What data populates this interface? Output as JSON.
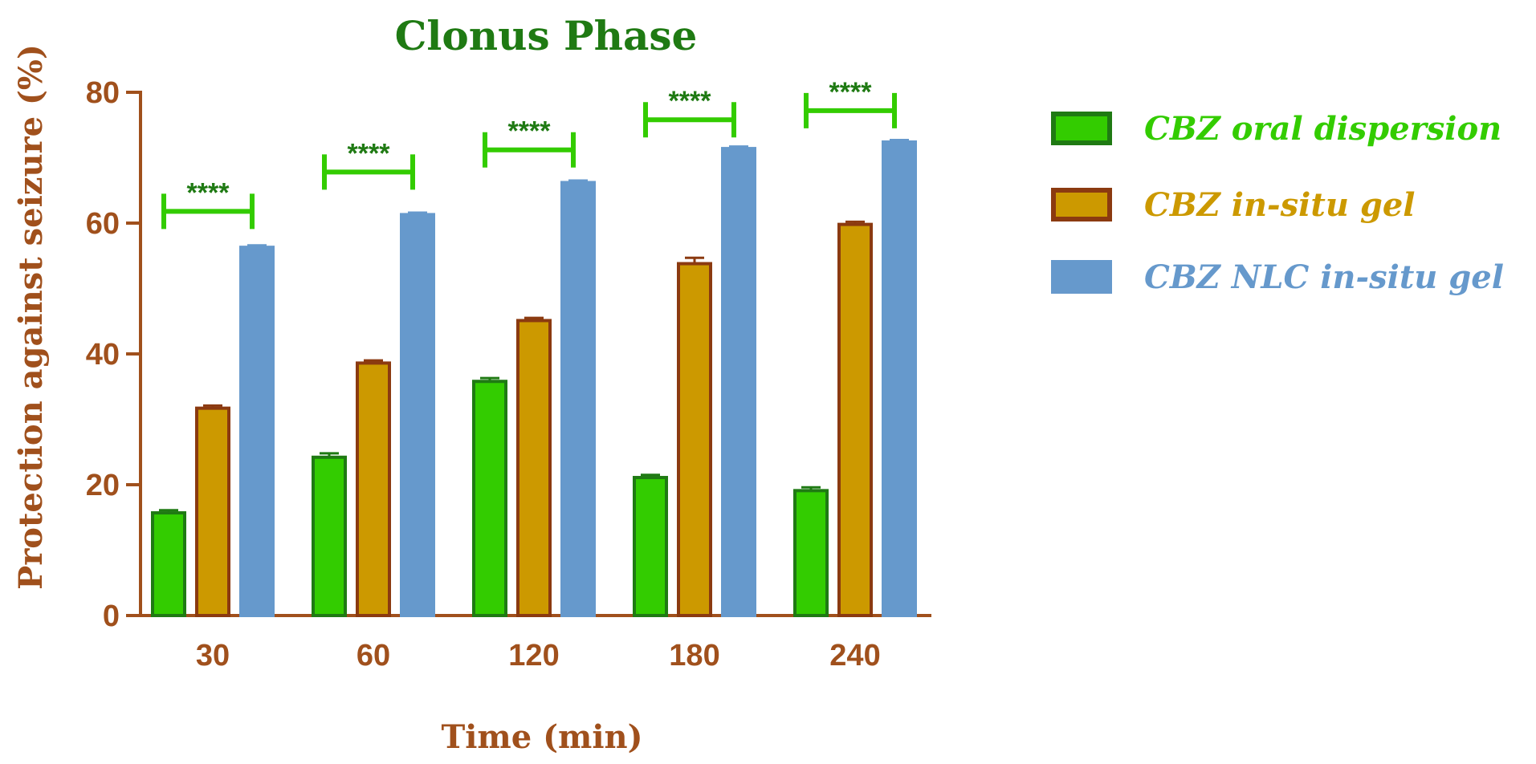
{
  "chart_data": {
    "type": "bar",
    "title": "Clonus Phase",
    "xlabel": "Time (min)",
    "ylabel": "Protection against seizure (%)",
    "categories": [
      "30",
      "60",
      "120",
      "180",
      "240"
    ],
    "ylim": [
      0,
      80
    ],
    "yticks": [
      0,
      20,
      40,
      60,
      80
    ],
    "grid": false,
    "legend_position": "right",
    "series": [
      {
        "name": "CBZ oral dispersion",
        "values": [
          15.7,
          24.2,
          35.8,
          21.1,
          19.1
        ],
        "errors": [
          0.4,
          0.6,
          0.5,
          0.4,
          0.5
        ],
        "fill": "#33cc00",
        "stroke": "#1f7a13"
      },
      {
        "name": "CBZ in-situ gel",
        "values": [
          31.7,
          38.6,
          45.1,
          53.8,
          59.8
        ],
        "errors": [
          0.4,
          0.4,
          0.4,
          0.9,
          0.4
        ],
        "fill": "#cc9900",
        "stroke": "#8b3a10"
      },
      {
        "name": "CBZ NLC in-situ gel",
        "values": [
          56.3,
          61.3,
          66.2,
          71.4,
          72.4
        ],
        "errors": [
          0.3,
          0.3,
          0.3,
          0.3,
          0.3
        ],
        "fill": "#6699cc",
        "stroke": "#6699cc"
      }
    ],
    "significance": [
      {
        "category": "30",
        "label": "****",
        "y": 61.8
      },
      {
        "category": "60",
        "label": "****",
        "y": 67.8
      },
      {
        "category": "120",
        "label": "****",
        "y": 71.2
      },
      {
        "category": "180",
        "label": "****",
        "y": 75.8
      },
      {
        "category": "240",
        "label": "****",
        "y": 77.2
      }
    ],
    "colors": {
      "title": "#1f7a13",
      "axis": "#a0501c",
      "legend_text": [
        "#33cc00",
        "#cc9900",
        "#6699cc"
      ],
      "significance": "#33cc00",
      "sig_text": "#1f7a13"
    }
  }
}
